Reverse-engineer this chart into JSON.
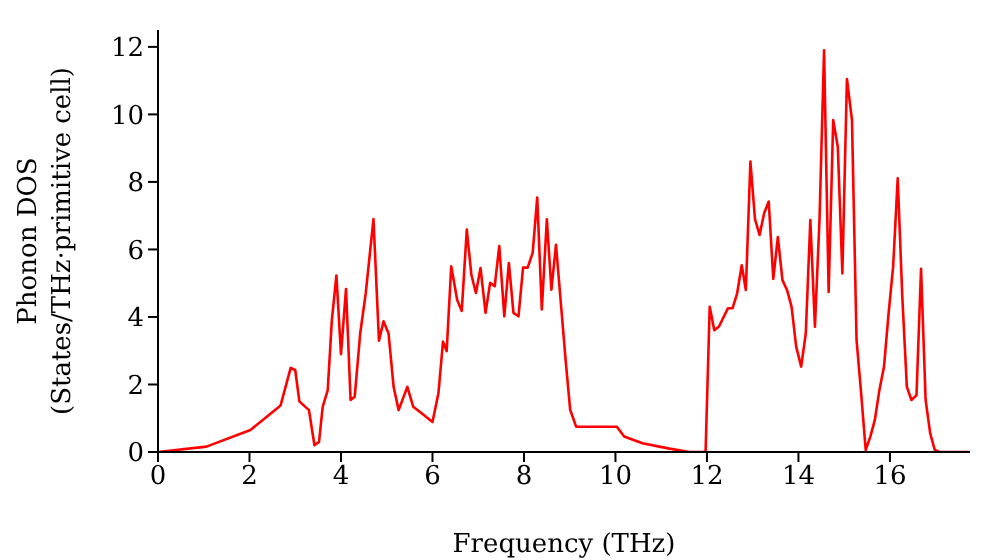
{
  "chart_data": {
    "type": "line",
    "xlabel": "Frequency (THz)",
    "ylabel": "Phonon DOS\n(States/THz·primitive cell)",
    "x": [
      0,
      1.06,
      2.02,
      2.68,
      2.9,
      3.0,
      3.09,
      3.3,
      3.42,
      3.52,
      3.6,
      3.71,
      3.8,
      3.9,
      4.0,
      4.11,
      4.21,
      4.3,
      4.42,
      4.54,
      4.71,
      4.83,
      4.93,
      5.04,
      5.15,
      5.26,
      5.45,
      5.58,
      5.77,
      6.0,
      6.13,
      6.23,
      6.31,
      6.41,
      6.54,
      6.64,
      6.75,
      6.85,
      6.95,
      7.05,
      7.16,
      7.26,
      7.36,
      7.46,
      7.57,
      7.67,
      7.77,
      7.88,
      7.98,
      8.08,
      8.19,
      8.29,
      8.39,
      8.5,
      8.6,
      8.7,
      8.8,
      8.91,
      9.01,
      9.14,
      9.56,
      10.03,
      10.19,
      10.59,
      11.18,
      11.62,
      11.97,
      12.06,
      12.16,
      12.26,
      12.46,
      12.56,
      12.66,
      12.76,
      12.85,
      12.95,
      13.05,
      13.15,
      13.25,
      13.35,
      13.45,
      13.55,
      13.65,
      13.75,
      13.85,
      13.95,
      14.06,
      14.16,
      14.26,
      14.36,
      14.46,
      14.56,
      14.66,
      14.76,
      14.86,
      14.96,
      15.06,
      15.17,
      15.27,
      15.37,
      15.47,
      15.57,
      15.67,
      15.77,
      15.87,
      15.97,
      16.07,
      16.17,
      16.27,
      16.37,
      16.47,
      16.58,
      16.68,
      16.78,
      16.88,
      16.98,
      17.08,
      17.75
    ],
    "series": [
      {
        "color": "#ff0000",
        "values": [
          0,
          0.16,
          0.65,
          1.38,
          2.49,
          2.43,
          1.5,
          1.24,
          0.2,
          0.3,
          1.34,
          1.83,
          3.9,
          5.23,
          2.9,
          4.83,
          1.54,
          1.64,
          3.51,
          4.69,
          6.9,
          3.3,
          3.87,
          3.51,
          1.93,
          1.24,
          1.93,
          1.34,
          1.14,
          0.89,
          1.74,
          3.27,
          2.99,
          5.5,
          4.5,
          4.18,
          6.59,
          5.25,
          4.71,
          5.45,
          4.12,
          5.01,
          4.91,
          6.1,
          4.02,
          5.6,
          4.12,
          4.02,
          5.46,
          5.46,
          5.9,
          7.54,
          4.22,
          6.89,
          4.81,
          6.14,
          4.51,
          2.73,
          1.25,
          0.75,
          0.75,
          0.75,
          0.46,
          0.26,
          0.1,
          0,
          0,
          4.3,
          3.61,
          3.71,
          4.26,
          4.26,
          4.7,
          5.53,
          4.8,
          8.6,
          6.9,
          6.43,
          7.07,
          7.42,
          5.13,
          6.37,
          5.09,
          4.8,
          4.3,
          3.12,
          2.53,
          3.51,
          6.87,
          3.71,
          6.87,
          11.9,
          4.74,
          9.83,
          9.04,
          5.29,
          11.05,
          9.83,
          3.32,
          1.74,
          0.06,
          0.45,
          0.95,
          1.84,
          2.53,
          4.1,
          5.49,
          8.11,
          4.6,
          1.93,
          1.54,
          1.68,
          5.43,
          1.54,
          0.55,
          0.06,
          0,
          0
        ]
      }
    ],
    "xlim": [
      0,
      17.75
    ],
    "xticks": [
      0,
      2,
      4,
      6,
      8,
      10,
      12,
      14,
      16
    ],
    "ylim": [
      0,
      12.5
    ],
    "yticks": [
      0,
      2,
      4,
      6,
      8,
      10,
      12
    ],
    "grid": false,
    "legend": false,
    "marker": "none",
    "line_style": "solid"
  }
}
